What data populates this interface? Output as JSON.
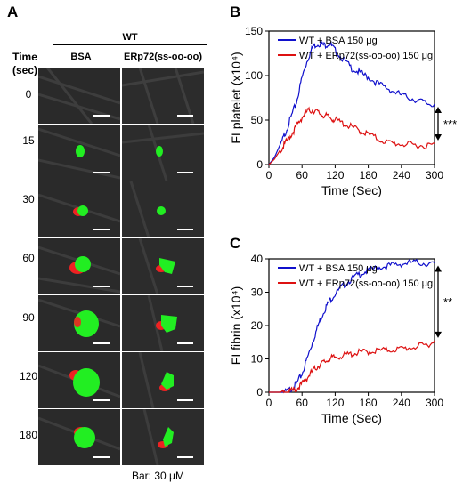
{
  "panel_a": {
    "letter": "A",
    "group_header": "WT",
    "time_header_line1": "Time",
    "time_header_line2": "(sec)",
    "columns": [
      "BSA",
      "ERp72(ss-oo-oo)"
    ],
    "times": [
      "0",
      "15",
      "30",
      "60",
      "90",
      "120",
      "180"
    ],
    "scale_caption": "Bar: 30 μM",
    "colors": {
      "platelet": "#22ee22",
      "fibrin": "#ee2222",
      "background": "#2a2a2a"
    }
  },
  "panel_b": {
    "letter": "B"
  },
  "panel_c": {
    "letter": "C"
  },
  "chart_data": [
    {
      "type": "line",
      "title": "",
      "xlabel": "Time (Sec)",
      "ylabel": "FI platelet (x10⁴)",
      "xlim": [
        0,
        300
      ],
      "ylim": [
        0,
        150
      ],
      "xticks": [
        "0",
        "60",
        "120",
        "180",
        "240",
        "300"
      ],
      "yticks": [
        "0",
        "50",
        "100",
        "150"
      ],
      "legend": "top",
      "annotation": "***",
      "series": [
        {
          "name": "WT + BSA 150 μg",
          "color": "#1010cc",
          "x": [
            0,
            10,
            20,
            30,
            40,
            50,
            60,
            70,
            80,
            90,
            100,
            110,
            120,
            135,
            150,
            165,
            180,
            200,
            220,
            240,
            260,
            280,
            300
          ],
          "y": [
            0,
            8,
            22,
            38,
            55,
            72,
            100,
            120,
            135,
            138,
            136,
            138,
            130,
            120,
            110,
            105,
            100,
            92,
            86,
            80,
            76,
            72,
            68
          ]
        },
        {
          "name": "WT + ERp72(ss-oo-oo) 150 μg",
          "color": "#dd1111",
          "x": [
            0,
            10,
            20,
            30,
            40,
            50,
            60,
            70,
            80,
            90,
            100,
            110,
            120,
            135,
            150,
            165,
            180,
            200,
            220,
            240,
            260,
            280,
            300
          ],
          "y": [
            0,
            6,
            16,
            26,
            35,
            45,
            55,
            62,
            63,
            60,
            57,
            55,
            52,
            48,
            44,
            40,
            36,
            30,
            26,
            25,
            24,
            23,
            24
          ]
        }
      ]
    },
    {
      "type": "line",
      "title": "",
      "xlabel": "Time (Sec)",
      "ylabel": "FI fibrin (x10⁴)",
      "xlim": [
        0,
        300
      ],
      "ylim": [
        0,
        40
      ],
      "xticks": [
        "0",
        "60",
        "120",
        "180",
        "240",
        "300"
      ],
      "yticks": [
        "0",
        "10",
        "20",
        "30",
        "40"
      ],
      "legend": "top",
      "annotation": "**",
      "series": [
        {
          "name": "WT + BSA 150 μg",
          "color": "#1010cc",
          "x": [
            0,
            20,
            30,
            40,
            50,
            60,
            70,
            80,
            90,
            100,
            110,
            120,
            135,
            150,
            165,
            180,
            200,
            220,
            240,
            260,
            280,
            300
          ],
          "y": [
            0,
            0,
            0.5,
            1.5,
            3,
            6,
            11,
            16,
            21,
            25,
            28,
            30,
            32.5,
            34.5,
            36,
            37,
            38,
            38.5,
            39,
            39.5,
            39.2,
            38.8
          ]
        },
        {
          "name": "WT + ERp72(ss-oo-oo) 150 μg",
          "color": "#dd1111",
          "x": [
            0,
            20,
            30,
            40,
            50,
            60,
            70,
            80,
            90,
            100,
            110,
            120,
            135,
            150,
            165,
            180,
            200,
            220,
            240,
            260,
            280,
            300
          ],
          "y": [
            0,
            0,
            0.3,
            0.8,
            1.5,
            3,
            5,
            7,
            8.5,
            9.5,
            10.5,
            11,
            11.5,
            12,
            12.5,
            12.7,
            13,
            13.2,
            13.5,
            14,
            14.5,
            15.5
          ]
        }
      ]
    }
  ]
}
